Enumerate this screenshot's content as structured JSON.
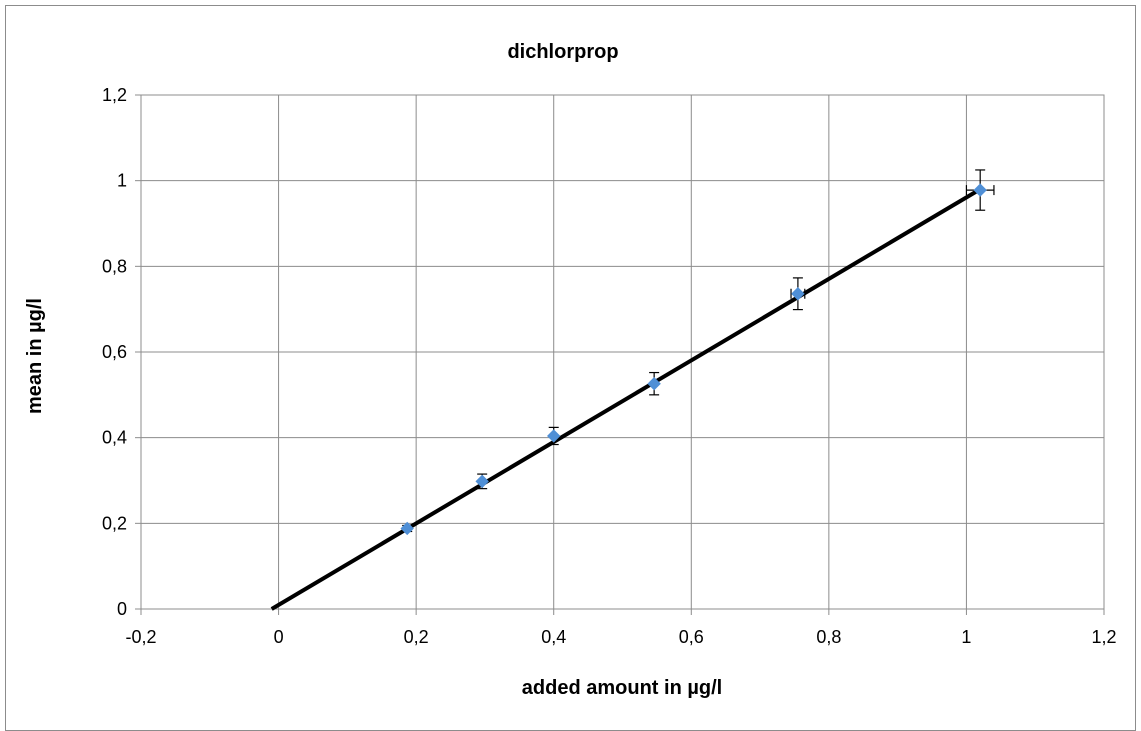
{
  "chart_data": {
    "type": "scatter",
    "title": "dichlorprop",
    "xlabel": "added amount in µg/l",
    "ylabel": "mean in µg/l",
    "xlim": [
      -0.2,
      1.2
    ],
    "ylim": [
      0,
      1.2
    ],
    "x_ticks": [
      "-0,2",
      "0",
      "0,2",
      "0,4",
      "0,6",
      "0,8",
      "1",
      "1,2"
    ],
    "y_ticks": [
      "0",
      "0,2",
      "0,4",
      "0,6",
      "0,8",
      "1",
      "1,2"
    ],
    "grid": true,
    "legend": "none",
    "series": [
      {
        "x": [
          0.187,
          0.296,
          0.4,
          0.546,
          0.755,
          1.02
        ],
        "y": [
          0.188,
          0.298,
          0.404,
          0.526,
          0.736,
          0.978
        ],
        "y_error": [
          0.007,
          0.017,
          0.02,
          0.026,
          0.037,
          0.047
        ],
        "x_error": [
          0,
          0,
          0,
          0,
          0.01,
          0.02
        ],
        "color": "#4f8fd6"
      }
    ],
    "fit_line": {
      "x": [
        -0.01,
        1.02
      ],
      "y": [
        0.0,
        0.98
      ],
      "color": "#000000"
    }
  },
  "colors": {
    "grid": "#8c8c8c",
    "axis": "#8c8c8c",
    "marker": "#4f8fd6",
    "fit": "#000000"
  }
}
